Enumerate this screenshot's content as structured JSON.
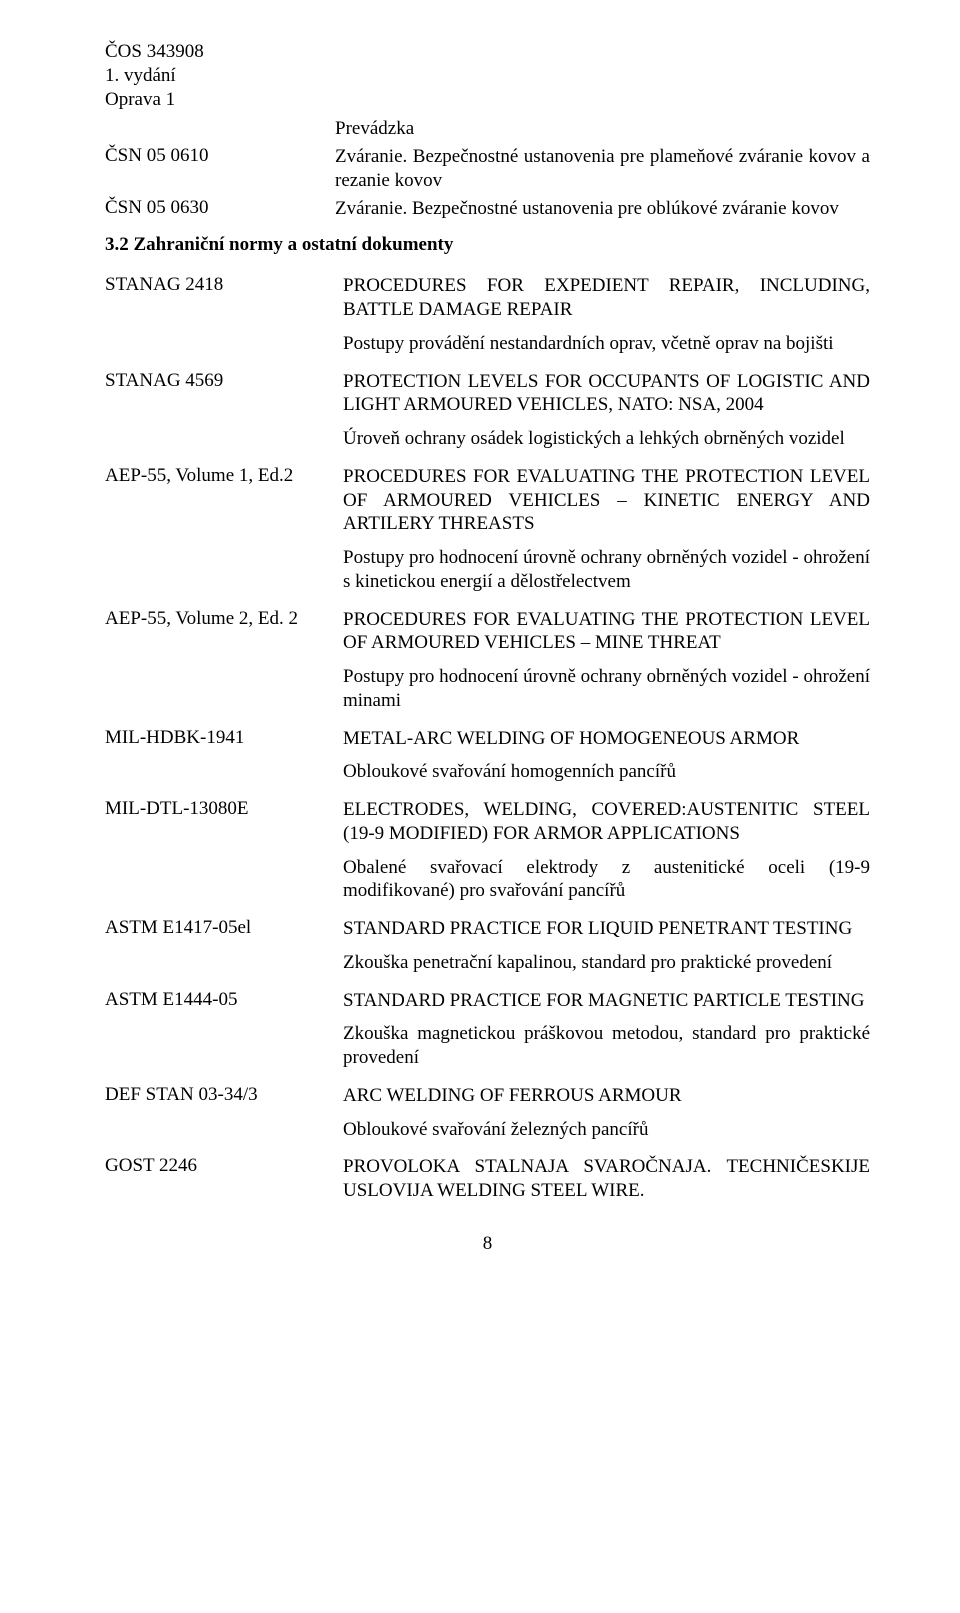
{
  "header": {
    "l1": "ČOS 343908",
    "l2": "1. vydání",
    "l3": "Oprava 1"
  },
  "prevadzka": "Prevádzka",
  "intro": [
    {
      "label": "ČSN 05 0610",
      "text": "Zváranie. Bezpečnostné ustanovenia pre plameňové zváranie kovov a rezanie kovov"
    },
    {
      "label": "ČSN 05 0630",
      "text": "Zváranie. Bezpečnostné ustanovenia pre oblúkové zváranie kovov"
    }
  ],
  "section": "3.2    Zahraniční normy a ostatní dokumenty",
  "entries": [
    {
      "label": "STANAG 2418",
      "title": "PROCEDURES FOR EXPEDIENT REPAIR, INCLUDING, BATTLE DAMAGE REPAIR",
      "desc": "Postupy provádění nestandardních oprav, včetně oprav na bojišti"
    },
    {
      "label": "STANAG 4569",
      "title": "PROTECTION LEVELS FOR OCCUPANTS OF LOGISTIC AND LIGHT ARMOURED VEHICLES, NATO: NSA, 2004",
      "desc": "Úroveň ochrany osádek logistických a lehkých obrněných vozidel"
    },
    {
      "label": "AEP-55, Volume 1, Ed.2",
      "title": "PROCEDURES FOR EVALUATING THE PROTECTION LEVEL OF ARMOURED VEHICLES – KINETIC ENERGY AND ARTILERY THREASTS",
      "desc": "Postupy pro hodnocení úrovně ochrany obrněných vozidel - ohrožení s kinetickou energií a dělostřelectvem"
    },
    {
      "label": "AEP-55, Volume 2, Ed. 2",
      "title": "PROCEDURES FOR EVALUATING THE PROTECTION LEVEL OF ARMOURED VEHICLES – MINE THREAT",
      "desc": "Postupy pro hodnocení úrovně ochrany obrněných vozidel - ohrožení minami"
    },
    {
      "label": "MIL-HDBK-1941",
      "title": "METAL-ARC WELDING OF HOMOGENEOUS ARMOR",
      "desc": "Obloukové svařování homogenních pancířů"
    },
    {
      "label": "MIL-DTL-13080E",
      "title": "ELECTRODES, WELDING, COVERED:AUSTENITIC STEEL (19-9 MODIFIED) FOR ARMOR APPLICATIONS",
      "desc": "Obalené svařovací elektrody z austenitické oceli (19-9 modifikované) pro svařování pancířů"
    },
    {
      "label": "ASTM E1417-05el",
      "title": "STANDARD PRACTICE FOR LIQUID PENETRANT TESTING",
      "desc": "Zkouška penetrační kapalinou, standard pro praktické provedení"
    },
    {
      "label": "ASTM E1444-05",
      "title": "STANDARD PRACTICE FOR MAGNETIC PARTICLE TESTING",
      "desc": "Zkouška magnetickou práškovou metodou, standard pro praktické provedení"
    },
    {
      "label": "DEF STAN 03-34/3",
      "title": "ARC WELDING OF FERROUS ARMOUR",
      "desc": "Obloukové svařování železných pancířů"
    },
    {
      "label": "GOST 2246",
      "title": "PROVOLOKA STALNAJA SVAROČNAJA. TECHNIČESKIJE USLOVIJA WELDING STEEL WIRE.",
      "desc": ""
    }
  ],
  "pagenum": "8"
}
